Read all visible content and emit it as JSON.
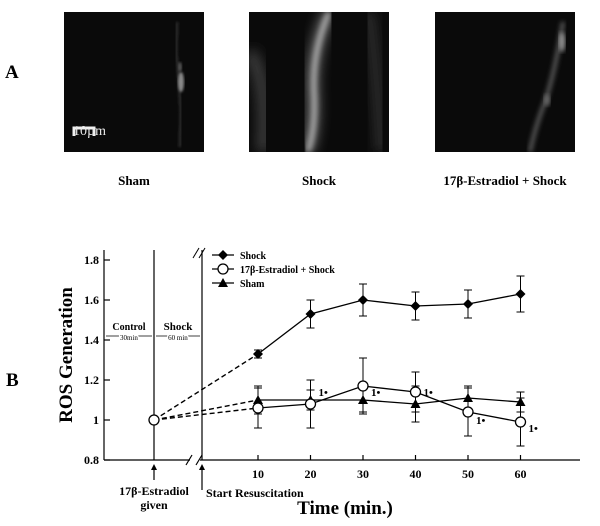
{
  "panels": {
    "a_label": "A",
    "b_label": "B"
  },
  "micrographs": [
    {
      "caption": "Sham",
      "scale_label": "10µm"
    },
    {
      "caption": "Shock"
    },
    {
      "caption": "17β-Estradiol + Shock"
    }
  ],
  "chart_data": {
    "type": "line",
    "ylabel": "ROS Generation",
    "xlabel": "Time (min.)",
    "x": [
      10,
      20,
      30,
      40,
      50,
      60
    ],
    "xticks": [
      "10",
      "20",
      "30",
      "40",
      "50",
      "60"
    ],
    "ylim": [
      0.8,
      1.85
    ],
    "yticks": [
      "0.8",
      "1",
      "1.2",
      "1.4",
      "1.6",
      "1.8"
    ],
    "baseline": 1.0,
    "series": [
      {
        "name": "Shock",
        "marker": "filled-diamond",
        "values": [
          1.33,
          1.53,
          1.6,
          1.57,
          1.58,
          1.63
        ],
        "errors": [
          0.02,
          0.07,
          0.08,
          0.07,
          0.07,
          0.09
        ]
      },
      {
        "name": "17β-Estradiol + Shock",
        "marker": "open-circle",
        "values": [
          1.06,
          1.08,
          1.17,
          1.14,
          1.04,
          0.99
        ],
        "errors": [
          0.1,
          0.12,
          0.14,
          0.1,
          0.12,
          0.12
        ]
      },
      {
        "name": "Sham",
        "marker": "filled-triangle",
        "values": [
          1.1,
          1.1,
          1.1,
          1.08,
          1.11,
          1.09
        ],
        "errors": [
          0.07,
          0.05,
          0.06,
          0.09,
          0.06,
          0.05
        ]
      }
    ],
    "annotations": {
      "control_label": "Control",
      "control_duration": "30min",
      "shock_label": "Shock",
      "shock_duration": "60 min",
      "estradiol_given": "17β-Estradiol\ngiven",
      "start_resuscitation": "Start Resuscitation",
      "significance_mark": "1•"
    }
  }
}
